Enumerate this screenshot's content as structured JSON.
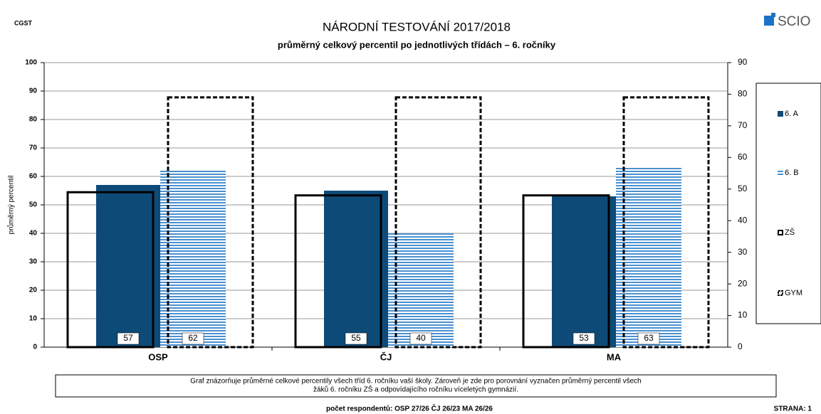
{
  "header": {
    "left": "CGST",
    "logo": "SCIO"
  },
  "chart_data": {
    "type": "bar",
    "title": "NÁRODNÍ TESTOVÁNÍ 2017/2018",
    "subtitle": "průměrný celkový percentil po jednotlivých třídách – 6. ročníky",
    "y_label": "průměrný percentil",
    "categories": [
      "OSP",
      "ČJ",
      "MA"
    ],
    "series": [
      {
        "name": "6. A",
        "color": "#0e4a78",
        "values": [
          57,
          55,
          53
        ]
      },
      {
        "name": "6. B",
        "color": "#4a90d0",
        "fill_pattern": "horizontal-stripes",
        "values": [
          62,
          40,
          63
        ]
      },
      {
        "name": "ZŠ",
        "color": "#000000",
        "line_style": "solid",
        "axis": "y2",
        "values": [
          49,
          48,
          48
        ]
      },
      {
        "name": "GYM",
        "color": "#000000",
        "line_style": "dashed",
        "axis": "y2",
        "values": [
          79,
          79,
          79
        ]
      }
    ],
    "ylim": [
      0,
      100
    ],
    "yticks": [
      0,
      10,
      20,
      30,
      40,
      50,
      60,
      70,
      80,
      90,
      100
    ],
    "y2lim": [
      0,
      90
    ],
    "y2ticks": [
      0,
      10,
      20,
      30,
      40,
      50,
      60,
      70,
      80,
      90
    ],
    "grid": true,
    "legend": "right"
  },
  "note": [
    "Graf znázorňuje průměrné celkové percentily všech tříd 6. ročníku vaší školy. Zároveň je zde pro porovnání vyznačen průměrný percentil všech",
    "žáků  6. ročníku ZŠ a odpovídajícího ročníku víceletých gymnázií."
  ],
  "footer": {
    "respondents": "počet respondentů: OSP 27/26  ČJ 26/23  MA 26/26",
    "page": "STRANA: 1"
  }
}
